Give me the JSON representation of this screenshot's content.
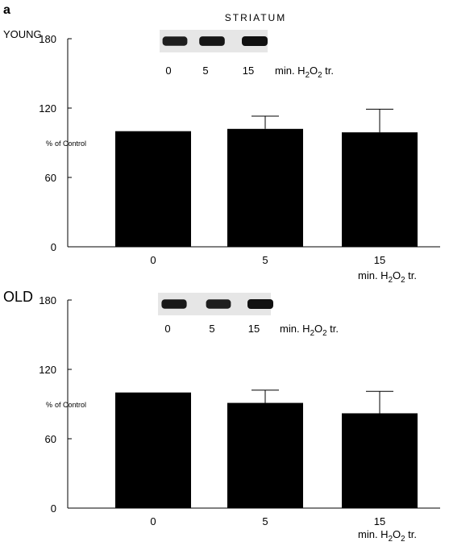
{
  "panel_label": "a",
  "title": "STRIATUM",
  "colors": {
    "bar": "#000000",
    "axis": "#000000",
    "blot_band": "#111111",
    "blot_bg": "#e6e6e6"
  },
  "chart_data": [
    {
      "type": "bar",
      "group_label": "YOUNG",
      "ylabel": "% of Control",
      "yticks": [
        "0",
        "60",
        "120",
        "180"
      ],
      "ylim": [
        0,
        180
      ],
      "categories": [
        "0",
        "5",
        "15"
      ],
      "values": [
        100,
        102,
        99
      ],
      "errors": [
        0,
        11,
        20
      ],
      "x_unit": "min. H2O2 tr.",
      "blot": {
        "lanes": [
          "0",
          "5",
          "15"
        ],
        "unit": "min. H2O2 tr.",
        "band_intensity": [
          0.85,
          0.95,
          1.0
        ]
      }
    },
    {
      "type": "bar",
      "group_label": "OLD",
      "ylabel": "% of Control",
      "yticks": [
        "0",
        "60",
        "120",
        "180"
      ],
      "ylim": [
        0,
        180
      ],
      "categories": [
        "0",
        "5",
        "15"
      ],
      "values": [
        100,
        91,
        82
      ],
      "errors": [
        0,
        11,
        19
      ],
      "x_unit": "min. H2O2 tr.",
      "blot": {
        "lanes": [
          "0",
          "5",
          "15"
        ],
        "unit": "min. H2O2 tr.",
        "band_intensity": [
          0.9,
          0.85,
          1.0
        ]
      }
    }
  ]
}
